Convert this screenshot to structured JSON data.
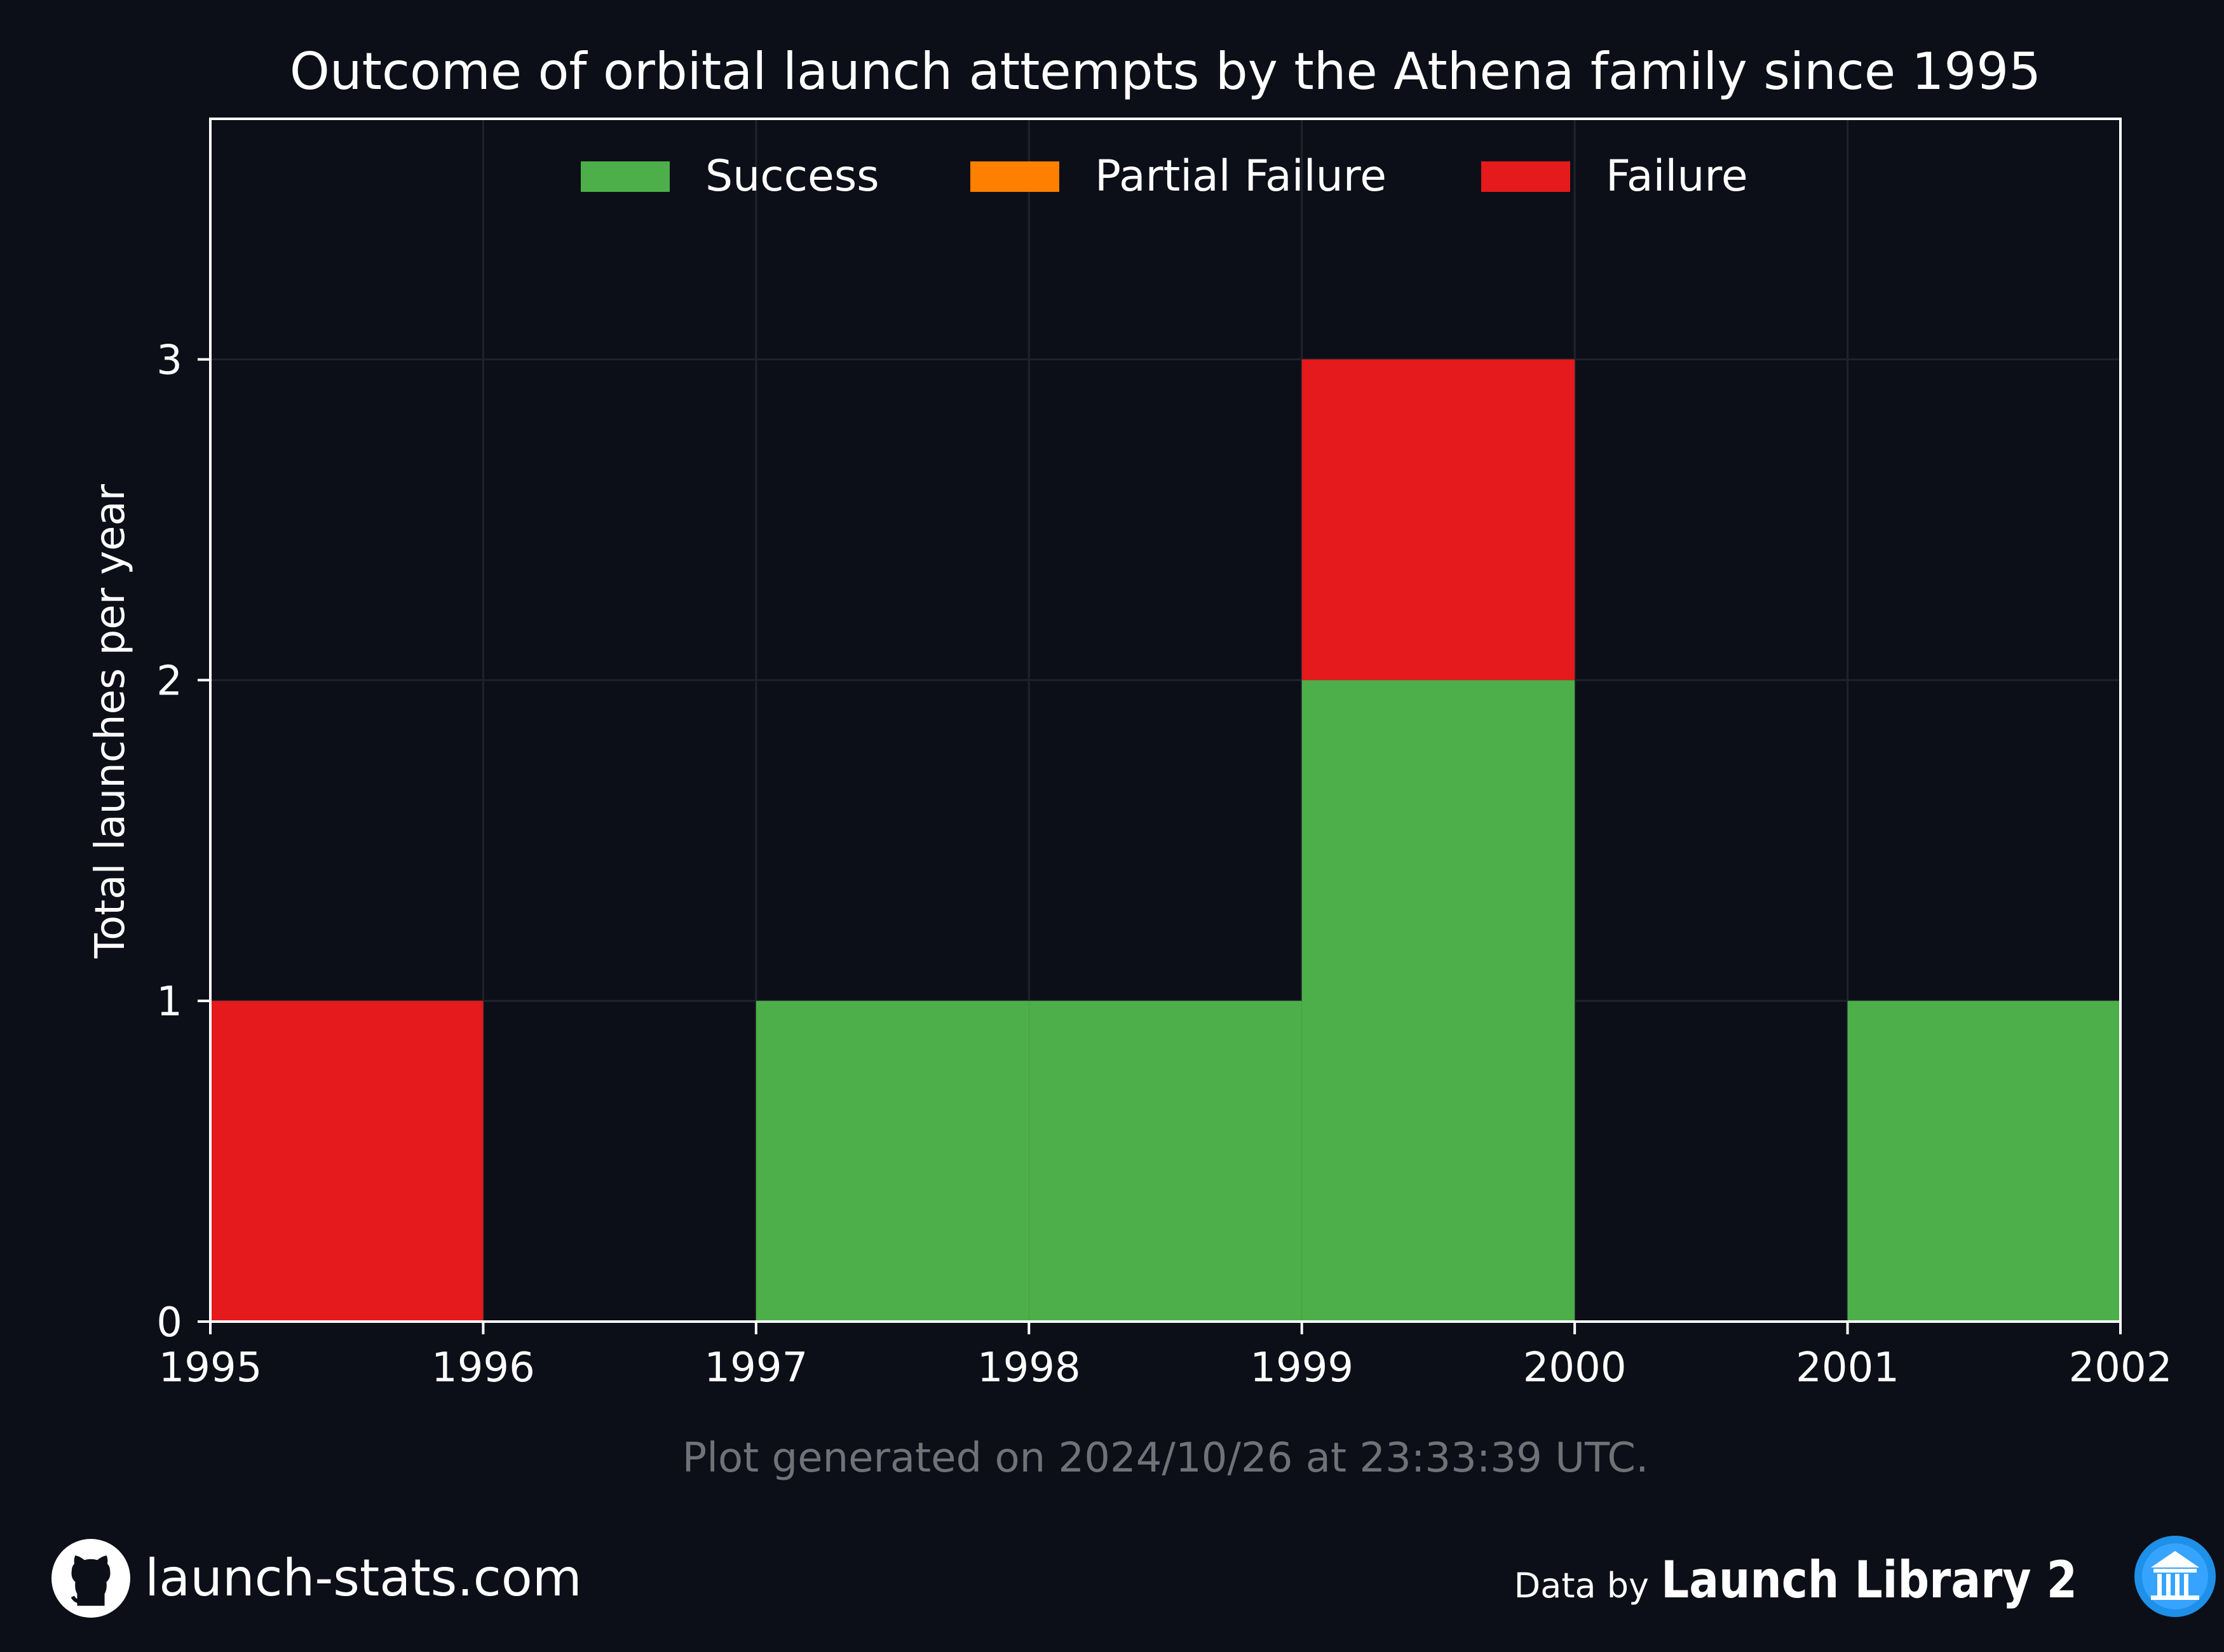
{
  "chart_data": {
    "type": "bar",
    "stacked": true,
    "title": "Outcome of orbital launch attempts by the Athena family since 1995",
    "xlabel": "",
    "ylabel": "Total launches per year",
    "x_ticks": [
      "1995",
      "1996",
      "1997",
      "1998",
      "1999",
      "2000",
      "2001",
      "2002"
    ],
    "y_ticks": [
      "0",
      "1",
      "2",
      "3"
    ],
    "xlim": [
      1995,
      2002
    ],
    "ylim": [
      0,
      3.75
    ],
    "bins": [
      1995,
      1996,
      1997,
      1998,
      1999,
      2000,
      2001
    ],
    "series": [
      {
        "name": "Success",
        "color": "#4daf4a",
        "values": [
          0,
          0,
          1,
          1,
          2,
          0,
          1
        ]
      },
      {
        "name": "Partial Failure",
        "color": "#ff7f00",
        "values": [
          0,
          0,
          0,
          0,
          0,
          0,
          0
        ]
      },
      {
        "name": "Failure",
        "color": "#e41a1c",
        "values": [
          1,
          0,
          0,
          0,
          1,
          0,
          0
        ]
      }
    ],
    "legend_position": "top-center",
    "grid": true
  },
  "footnote": "Plot generated on 2024/10/26 at 23:33:39 UTC.",
  "footer": {
    "site": "launch-stats.com",
    "site_icon": "github-icon",
    "data_by": "Data by",
    "source": "Launch Library 2",
    "source_icon": "launch-library-logo-icon"
  },
  "colors": {
    "background": "#0c0f17",
    "text": "#ffffff",
    "grid": "#1f232b",
    "footnote": "#6f7277",
    "logo_blue": "#1e90e8"
  }
}
